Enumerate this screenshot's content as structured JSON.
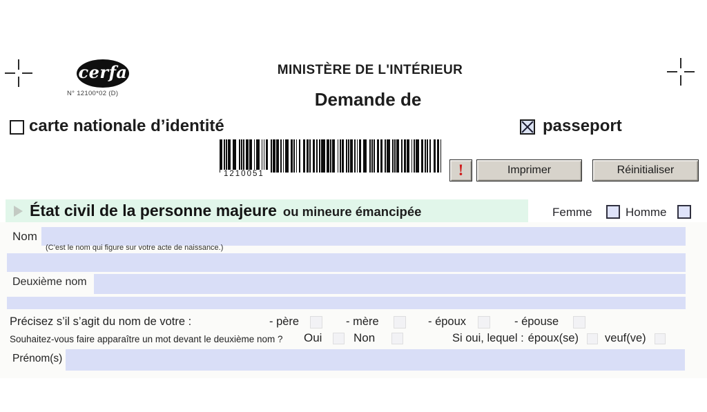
{
  "cerfa": {
    "logo_text": "cerfa",
    "number": "N° 12100*02 (D)"
  },
  "header": {
    "ministry": "MINISTÈRE DE L'INTÉRIEUR",
    "subtitle": "Demande de",
    "options": [
      {
        "label": "carte nationale d’identité",
        "checked": false
      },
      {
        "label": "passeport",
        "checked": true
      }
    ],
    "barcode_number": "1210051",
    "alert_label": "!",
    "print_button": "Imprimer",
    "reset_button": "Réinitialiser"
  },
  "section": {
    "title": "État civil de la personne majeure",
    "title_suffix": "ou mineure émancipée",
    "gender_options": [
      {
        "label": "Femme",
        "checked": false
      },
      {
        "label": "Homme",
        "checked": false
      }
    ]
  },
  "form": {
    "nom": {
      "label": "Nom",
      "note": "(C’est le nom qui figure sur votre acte de naissance.)",
      "value": "",
      "value_line2": ""
    },
    "deuxieme_nom": {
      "label": "Deuxième nom",
      "value": "",
      "value_line2": ""
    },
    "precisez": {
      "label": "Précisez s’il s’agit du nom de votre :",
      "options": [
        {
          "label": "- père",
          "checked": false
        },
        {
          "label": "- mère",
          "checked": false
        },
        {
          "label": "- époux",
          "checked": false
        },
        {
          "label": "- épouse",
          "checked": false
        }
      ]
    },
    "souhaitez": {
      "label": "Souhaitez-vous faire apparaître un mot devant le deuxième nom ?",
      "oui": "Oui",
      "non": "Non",
      "si_oui_label": "Si oui, lequel :",
      "options": [
        {
          "label": "époux(se)",
          "checked": false
        },
        {
          "label": "veuf(ve)",
          "checked": false
        }
      ]
    },
    "prenoms": {
      "label": "Prénom(s)",
      "value": ""
    }
  },
  "icons": {
    "triangle": "section-pointer",
    "checked_mark": "x-mark"
  },
  "colors": {
    "field_blue": "#d9def7",
    "section_green": "#e1f6ea",
    "alert_red": "#cf1a1a",
    "button_face": "#d7d3cb",
    "checkbox_fill_blue": "#dce3f3"
  }
}
